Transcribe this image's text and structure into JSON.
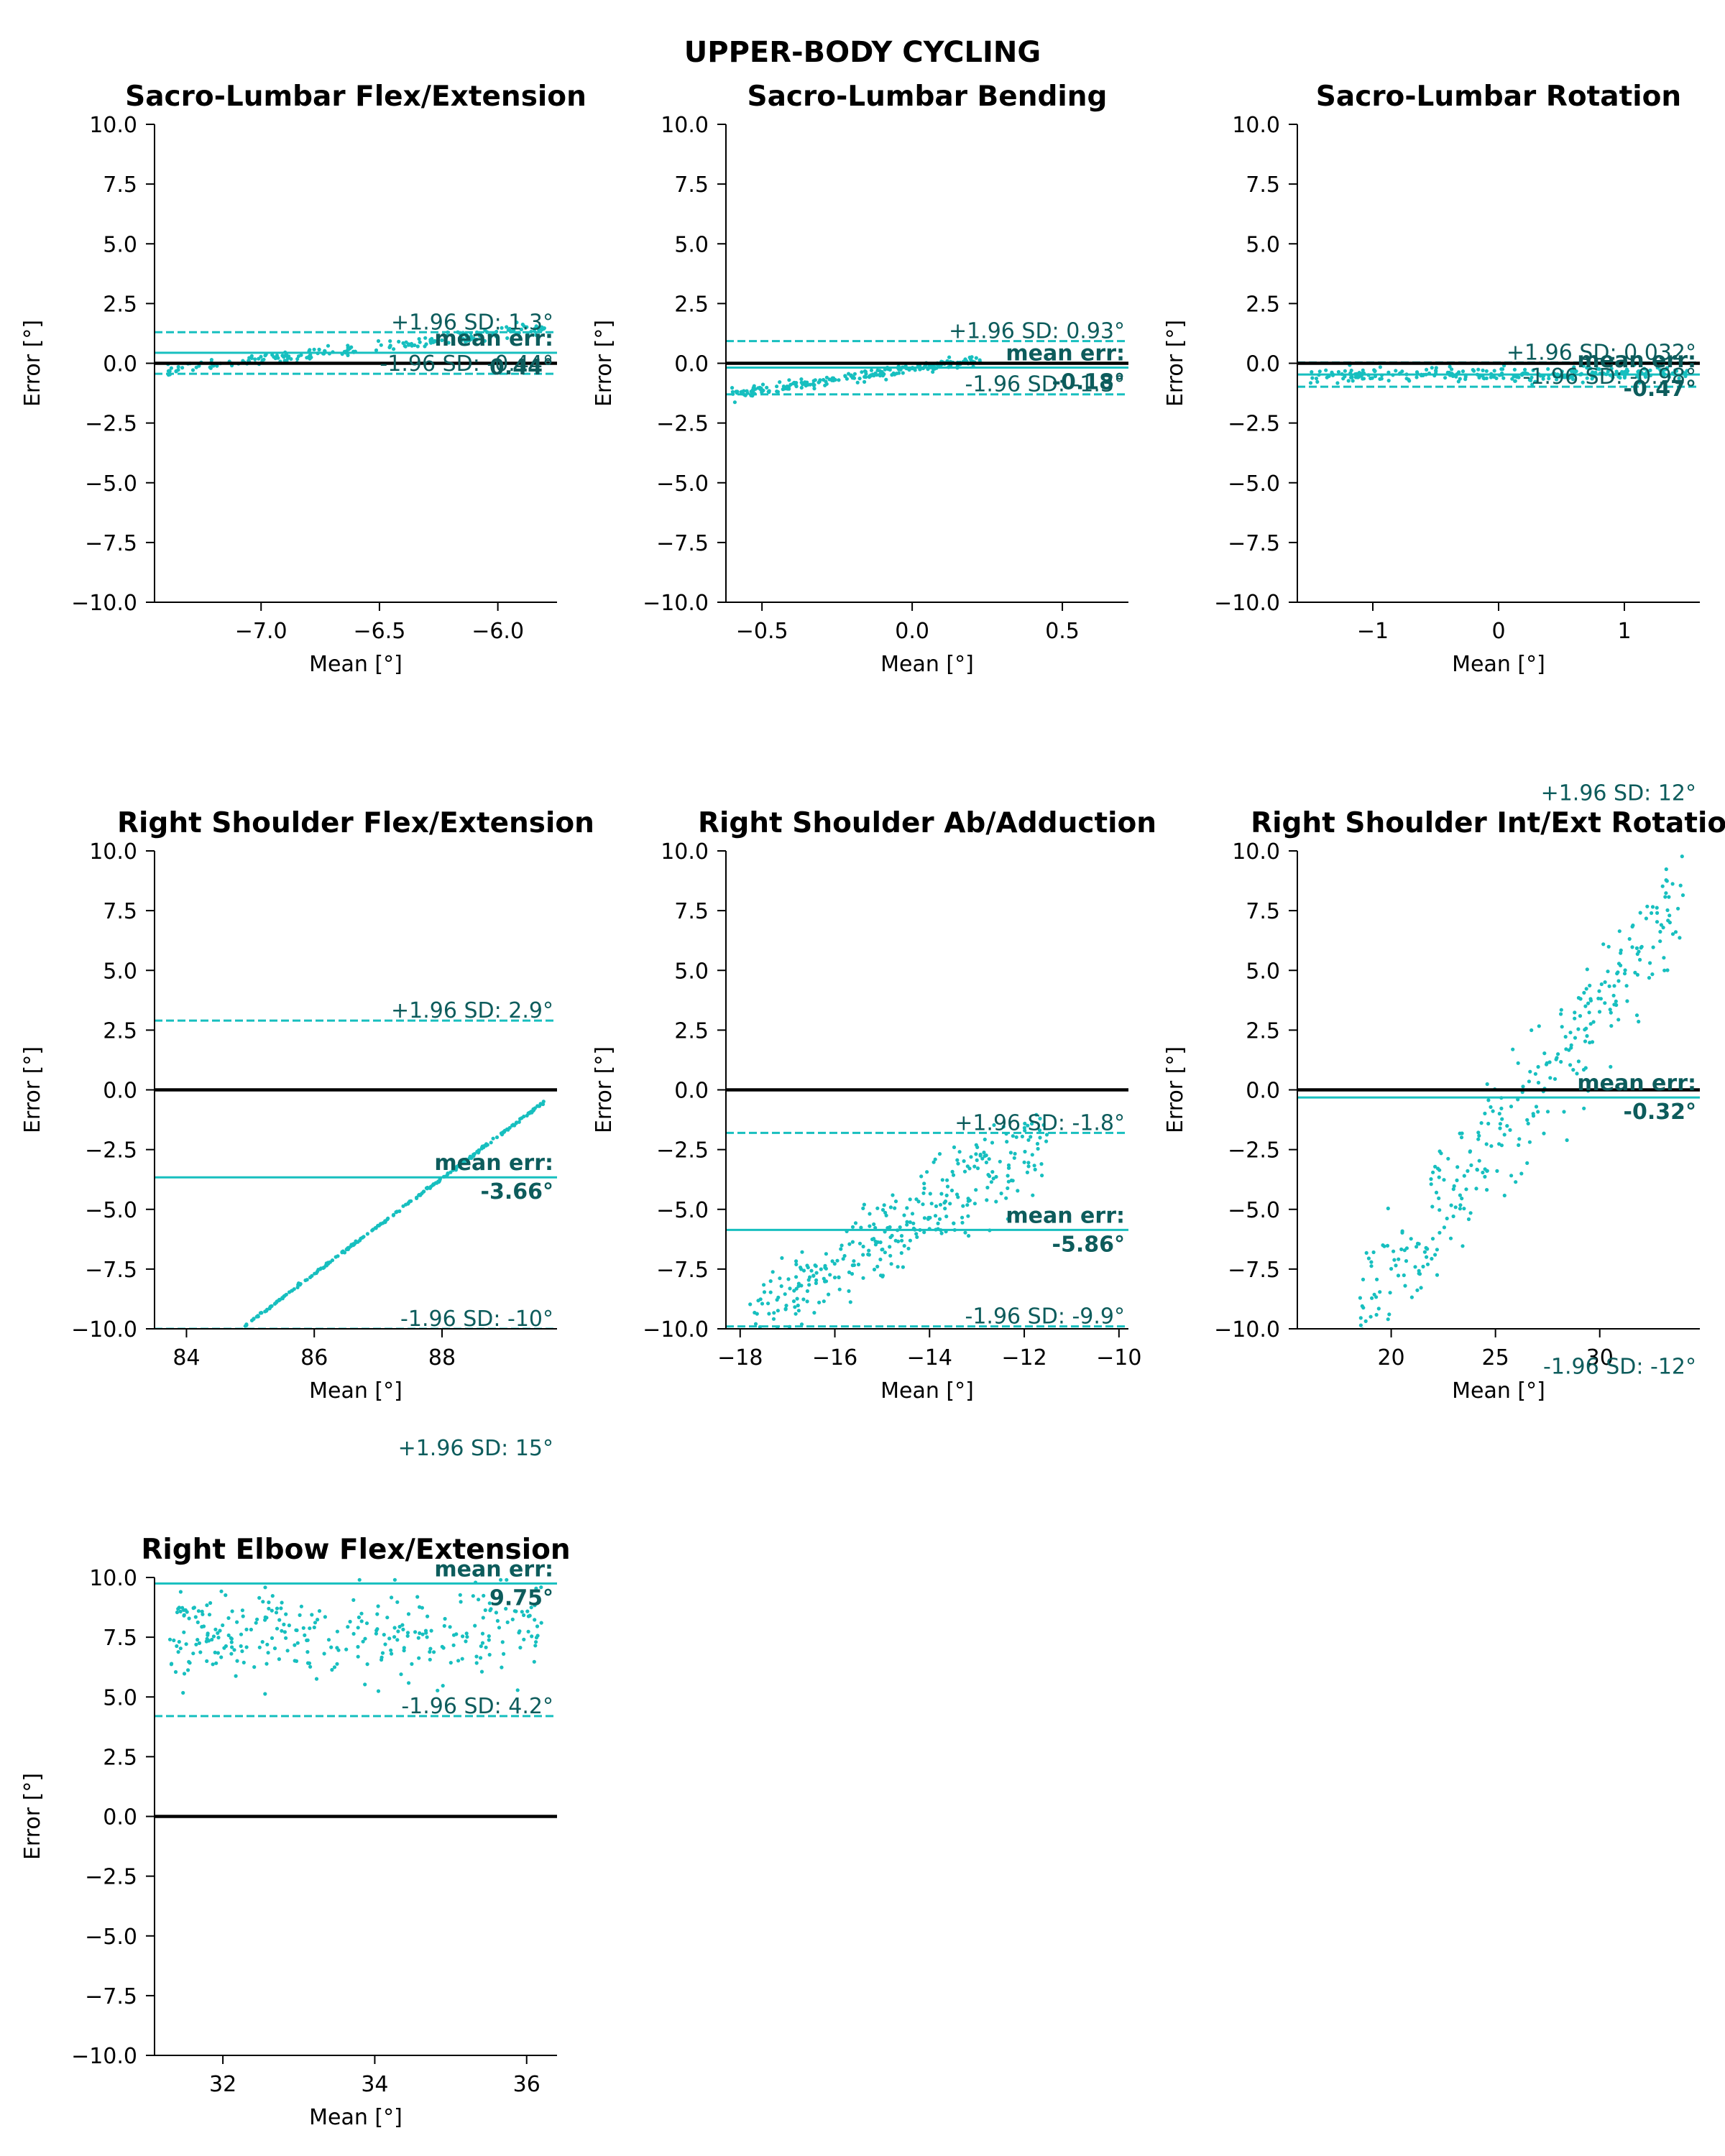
{
  "figure": {
    "suptitle": "UPPER-BODY CYCLING"
  },
  "style": {
    "point_color": "#17bfbf",
    "annotation_color": "#0d5c5c",
    "zero_line_color": "#000000"
  },
  "chart_data": [
    {
      "type": "scatter",
      "title": "Sacro-Lumbar Flex/Extension",
      "xlabel": "Mean [°]",
      "ylabel": "Error [°]",
      "xlim": [
        -7.45,
        -5.75
      ],
      "ylim": [
        -10,
        10
      ],
      "xticks": [
        -7.0,
        -6.5,
        -6.0
      ],
      "xtick_labels": [
        "−7.0",
        "−6.5",
        "−6.0"
      ],
      "yticks": [
        -10,
        -7.5,
        -5,
        -2.5,
        0,
        2.5,
        5,
        7.5,
        10
      ],
      "ytick_labels": [
        "−10.0",
        "−7.5",
        "−5.0",
        "−2.5",
        "0.0",
        "2.5",
        "5.0",
        "7.5",
        "10.0"
      ],
      "grid": false,
      "mean_error": 0.44,
      "upper_loa": 1.3,
      "lower_loa": -0.44,
      "mean_label": "mean err:",
      "mean_value_label": "0.44°",
      "upper_label": "+1.96 SD: 1.3°",
      "lower_label": "-1.96 SD: -0.44°",
      "point_trend": {
        "n": 200,
        "x_range": [
          -7.4,
          -5.8
        ],
        "y_start": -0.3,
        "y_end": 1.5,
        "noise": 0.12
      }
    },
    {
      "type": "scatter",
      "title": "Sacro-Lumbar Bending",
      "xlabel": "Mean [°]",
      "ylabel": "Error [°]",
      "xlim": [
        -0.62,
        0.72
      ],
      "ylim": [
        -10,
        10
      ],
      "xticks": [
        -0.5,
        0.0,
        0.5
      ],
      "xtick_labels": [
        "−0.5",
        "0.0",
        "0.5"
      ],
      "yticks": [
        -10,
        -7.5,
        -5,
        -2.5,
        0,
        2.5,
        5,
        7.5,
        10
      ],
      "ytick_labels": [
        "−10.0",
        "−7.5",
        "−5.0",
        "−2.5",
        "0.0",
        "2.5",
        "5.0",
        "7.5",
        "10.0"
      ],
      "grid": false,
      "mean_error": -0.18,
      "upper_loa": 0.93,
      "lower_loa": -1.3,
      "mean_label": "mean err:",
      "mean_value_label": "-0.18°",
      "upper_label": "+1.96 SD: 0.93°",
      "lower_label": "-1.96 SD: -1.3°",
      "point_trend": {
        "n": 220,
        "x_range": [
          -0.6,
          0.25
        ],
        "y_start": -1.3,
        "y_end": 0.2,
        "noise": 0.1
      }
    },
    {
      "type": "scatter",
      "title": "Sacro-Lumbar Rotation",
      "xlabel": "Mean [°]",
      "ylabel": "Error [°]",
      "xlim": [
        -1.6,
        1.6
      ],
      "ylim": [
        -10,
        10
      ],
      "xticks": [
        -1,
        0,
        1
      ],
      "xtick_labels": [
        "−1",
        "0",
        "1"
      ],
      "yticks": [
        -10,
        -7.5,
        -5,
        -2.5,
        0,
        2.5,
        5,
        7.5,
        10
      ],
      "ytick_labels": [
        "−10.0",
        "−7.5",
        "−5.0",
        "−2.5",
        "0.0",
        "2.5",
        "5.0",
        "7.5",
        "10.0"
      ],
      "grid": false,
      "mean_error": -0.47,
      "upper_loa": 0.032,
      "lower_loa": -0.98,
      "mean_label": "mean err:",
      "mean_value_label": "-0.47°",
      "upper_label": "+1.96 SD: 0.032°",
      "lower_label": "-1.96 SD: -0.98°",
      "point_trend": {
        "n": 260,
        "x_range": [
          -1.5,
          1.5
        ],
        "y_start": -0.55,
        "y_end": -0.4,
        "noise": 0.15
      }
    },
    {
      "type": "scatter",
      "title": "Right Shoulder Flex/Extension",
      "xlabel": "Mean [°]",
      "ylabel": "Error [°]",
      "xlim": [
        83.5,
        89.8
      ],
      "ylim": [
        -10,
        10
      ],
      "xticks": [
        84,
        86,
        88
      ],
      "xtick_labels": [
        "84",
        "86",
        "88"
      ],
      "yticks": [
        -10,
        -7.5,
        -5,
        -2.5,
        0,
        2.5,
        5,
        7.5,
        10
      ],
      "ytick_labels": [
        "−10.0",
        "−7.5",
        "−5.0",
        "−2.5",
        "0.0",
        "2.5",
        "5.0",
        "7.5",
        "10.0"
      ],
      "grid": false,
      "mean_error": -3.66,
      "upper_loa": 2.9,
      "lower_loa": -10,
      "mean_label": "mean err:",
      "mean_value_label": "-3.66°",
      "upper_label": "+1.96 SD: 2.9°",
      "lower_label": "-1.96 SD: -10°",
      "point_trend": {
        "n": 240,
        "x_range": [
          84.9,
          89.6
        ],
        "y_start": -9.9,
        "y_end": -0.5,
        "noise": 0.03
      }
    },
    {
      "type": "scatter",
      "title": "Right Shoulder Ab/Adduction",
      "xlabel": "Mean [°]",
      "ylabel": "Error [°]",
      "xlim": [
        -18.3,
        -9.8
      ],
      "ylim": [
        -10,
        10
      ],
      "xticks": [
        -18,
        -16,
        -14,
        -12,
        -10
      ],
      "xtick_labels": [
        "−18",
        "−16",
        "−14",
        "−12",
        "−10"
      ],
      "yticks": [
        -10,
        -7.5,
        -5,
        -2.5,
        0,
        2.5,
        5,
        7.5,
        10
      ],
      "ytick_labels": [
        "−10.0",
        "−7.5",
        "−5.0",
        "−2.5",
        "0.0",
        "2.5",
        "5.0",
        "7.5",
        "10.0"
      ],
      "grid": false,
      "mean_error": -5.86,
      "upper_loa": -1.8,
      "lower_loa": -9.9,
      "mean_label": "mean err:",
      "mean_value_label": "-5.86°",
      "upper_label": "+1.96 SD: -1.8°",
      "lower_label": "-1.96 SD: -9.9°",
      "point_trend": {
        "n": 330,
        "x_range": [
          -17.8,
          -11.5
        ],
        "y_start": -9.8,
        "y_end": -2.0,
        "noise": 0.9
      }
    },
    {
      "type": "scatter",
      "title": "Right Shoulder Int/Ext Rotation",
      "xlabel": "Mean [°]",
      "ylabel": "Error [°]",
      "xlim": [
        15.5,
        34.8
      ],
      "ylim": [
        -10,
        10
      ],
      "xticks": [
        20,
        25,
        30
      ],
      "xtick_labels": [
        "20",
        "25",
        "30"
      ],
      "yticks": [
        -10,
        -7.5,
        -5,
        -2.5,
        0,
        2.5,
        5,
        7.5,
        10
      ],
      "ytick_labels": [
        "−10.0",
        "−7.5",
        "−5.0",
        "−2.5",
        "0.0",
        "2.5",
        "5.0",
        "7.5",
        "10.0"
      ],
      "grid": false,
      "mean_error": -0.32,
      "upper_loa": 12,
      "lower_loa": -12,
      "mean_label": "mean err:",
      "mean_value_label": "-0.32°",
      "upper_label": "+1.96 SD: 12°",
      "lower_label": "-1.96 SD: -12°",
      "point_trend": {
        "n": 320,
        "x_range": [
          18.5,
          34
        ],
        "y_start": -9.5,
        "y_end": 8.0,
        "noise": 1.3
      }
    },
    {
      "type": "scatter",
      "title": "Right Elbow Flex/Extension",
      "xlabel": "Mean [°]",
      "ylabel": "Error [°]",
      "xlim": [
        31.1,
        36.4
      ],
      "ylim": [
        -10,
        10
      ],
      "xticks": [
        32,
        34,
        36
      ],
      "xtick_labels": [
        "32",
        "34",
        "36"
      ],
      "yticks": [
        -10,
        -7.5,
        -5,
        -2.5,
        0,
        2.5,
        5,
        7.5,
        10
      ],
      "ytick_labels": [
        "−10.0",
        "−7.5",
        "−5.0",
        "−2.5",
        "0.0",
        "2.5",
        "5.0",
        "7.5",
        "10.0"
      ],
      "grid": false,
      "mean_error": 9.75,
      "upper_loa": 15,
      "lower_loa": 4.2,
      "mean_label": "mean err:",
      "mean_value_label": "9.75°",
      "upper_label": "+1.96 SD: 15°",
      "lower_label": "-1.96 SD: 4.2°",
      "point_trend": {
        "n": 300,
        "x_range": [
          31.3,
          36.2
        ],
        "y_start": 7.6,
        "y_end": 7.6,
        "noise": 1.0,
        "y_clip": [
          4.8,
          9.9
        ]
      }
    }
  ]
}
